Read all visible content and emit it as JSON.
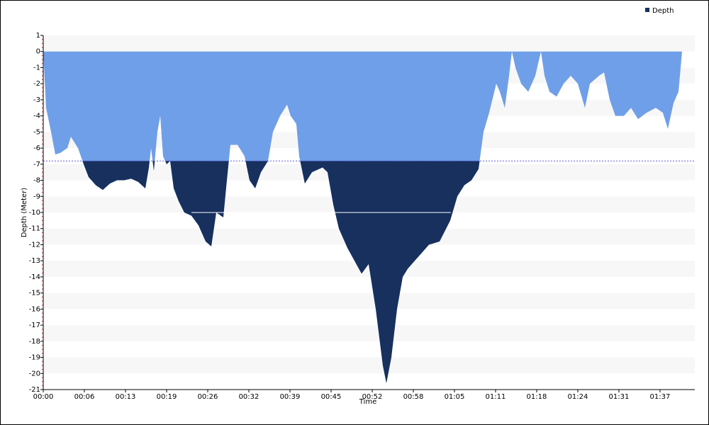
{
  "chart_data": {
    "type": "area",
    "x_label": "Time",
    "y_label": "Depth (Meter)",
    "legend": "top-right",
    "threshold": -6.8,
    "threshold_color": "#17305e",
    "marker_line": {
      "y": -10,
      "x": [
        23.32,
        64.14
      ]
    },
    "grid": true,
    "xlim": [
      0,
      102.52
    ],
    "xticks": [
      {
        "value": 0,
        "label": "00:00"
      },
      {
        "value": 6.47,
        "label": "00:06"
      },
      {
        "value": 12.94,
        "label": "00:13"
      },
      {
        "value": 19.41,
        "label": "00:19"
      },
      {
        "value": 25.88,
        "label": "00:26"
      },
      {
        "value": 32.35,
        "label": "00:32"
      },
      {
        "value": 38.82,
        "label": "00:39"
      },
      {
        "value": 45.29,
        "label": "00:45"
      },
      {
        "value": 51.76,
        "label": "00:52"
      },
      {
        "value": 58.23,
        "label": "00:58"
      },
      {
        "value": 64.7,
        "label": "01:05"
      },
      {
        "value": 71.17,
        "label": "01:11"
      },
      {
        "value": 77.64,
        "label": "01:18"
      },
      {
        "value": 84.11,
        "label": "01:24"
      },
      {
        "value": 90.58,
        "label": "01:31"
      },
      {
        "value": 97.05,
        "label": "01:37"
      }
    ],
    "ylim": [
      -21,
      1
    ],
    "yticks": [
      1,
      0,
      -1,
      -2,
      -3,
      -4,
      -5,
      -6,
      -7,
      -8,
      -9,
      -10,
      -11,
      -12,
      -13,
      -14,
      -15,
      -16,
      -17,
      -18,
      -19,
      -20,
      -21
    ],
    "x": [
      0,
      0.45,
      1.23,
      1.9,
      2.68,
      3.79,
      4.35,
      5.47,
      6.36,
      7.14,
      8.26,
      9.37,
      10.49,
      11.6,
      12.72,
      13.83,
      14.95,
      16.06,
      16.62,
      16.96,
      17.4,
      17.96,
      18.41,
      18.85,
      19.41,
      19.97,
      20.53,
      21.31,
      22.2,
      23.32,
      24.43,
      25.55,
      26.44,
      27.22,
      28.33,
      28.89,
      29.45,
      30.57,
      31.68,
      32.46,
      33.35,
      34.25,
      35.36,
      36.14,
      37.26,
      38.37,
      38.93,
      39.82,
      40.27,
      41.16,
      42.28,
      43.95,
      44.73,
      45.63,
      46.52,
      47.86,
      48.97,
      50.09,
      51.2,
      52.32,
      53.43,
      53.99,
      54.77,
      55.66,
      56.56,
      57.34,
      58.45,
      59.57,
      60.68,
      62.36,
      64.03,
      65.15,
      66.26,
      67.37,
      68.49,
      69.27,
      70.16,
      71.28,
      71.84,
      72.62,
      73.29,
      73.74,
      74.3,
      75.19,
      76.31,
      77.42,
      78.31,
      78.87,
      79.65,
      80.77,
      81.88,
      83,
      84.11,
      85.23,
      86.01,
      87.46,
      88.24,
      89.13,
      90.02,
      91.36,
      92.48,
      93.59,
      94.93,
      96.38,
      97.49,
      98.28,
      99.17,
      99.95,
      100.51
    ],
    "series": [
      {
        "name": "Depth",
        "color": "#6f9fe8",
        "values": [
          0,
          -3.5,
          -5,
          -6.4,
          -6.3,
          -6,
          -5.3,
          -6,
          -7,
          -7.8,
          -8.3,
          -8.6,
          -8.2,
          -8,
          -8,
          -7.9,
          -8.1,
          -8.5,
          -7.2,
          -6,
          -7.4,
          -5,
          -4,
          -6.5,
          -7,
          -6.8,
          -8.5,
          -9.3,
          -10,
          -10.2,
          -10.8,
          -11.8,
          -12.1,
          -10,
          -10.3,
          -8,
          -5.8,
          -5.8,
          -6.5,
          -8,
          -8.5,
          -7.5,
          -6.8,
          -5,
          -4,
          -3.3,
          -4,
          -4.5,
          -6.5,
          -8.2,
          -7.5,
          -7.2,
          -7.5,
          -9.5,
          -11,
          -12.2,
          -13,
          -13.8,
          -13.2,
          -16,
          -19.5,
          -20.6,
          -19,
          -16,
          -14,
          -13.5,
          -13,
          -12.5,
          -12,
          -11.8,
          -10.5,
          -9,
          -8.3,
          -8,
          -7.3,
          -5,
          -3.8,
          -2,
          -2.5,
          -3.5,
          -1.5,
          0,
          -1,
          -2,
          -2.5,
          -1.5,
          0,
          -1.5,
          -2.5,
          -2.8,
          -2,
          -1.5,
          -2,
          -3.5,
          -2,
          -1.5,
          -1.3,
          -3,
          -4,
          -4,
          -3.5,
          -4.2,
          -3.8,
          -3.5,
          -3.8,
          -4.8,
          -3.2,
          -2.5,
          0
        ]
      }
    ]
  }
}
